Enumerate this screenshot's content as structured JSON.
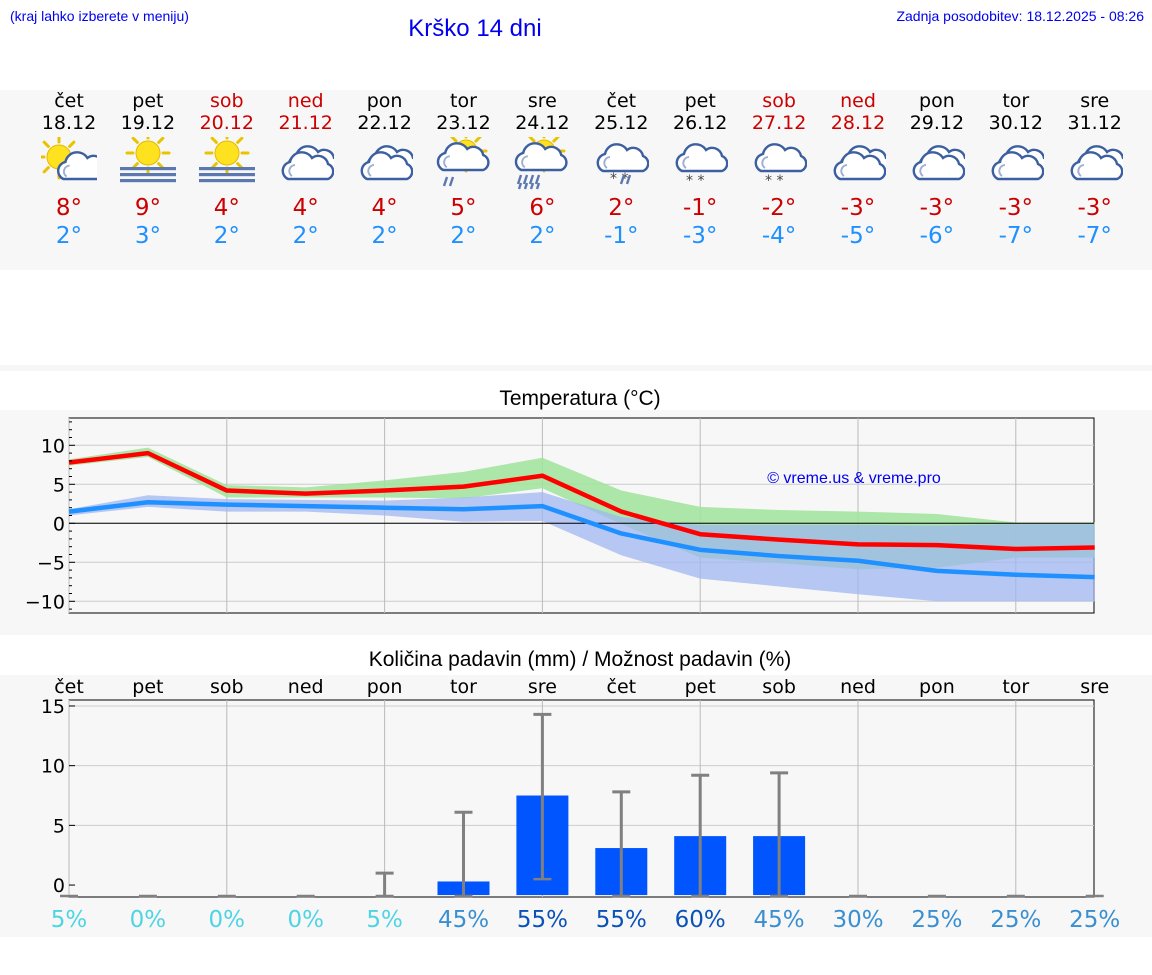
{
  "header": {
    "hint": "(kraj lahko izberete v meniju)",
    "title": "Krško 14 dni",
    "updated": "Zadnja posodobitev: 18.12.2025 - 08:26"
  },
  "days": [
    {
      "name": "čet",
      "date": "18.12",
      "weekend": false,
      "icon": "sun-cloud-icon",
      "tmax": "8°",
      "tmin": "2°"
    },
    {
      "name": "pet",
      "date": "19.12",
      "weekend": false,
      "icon": "sun-fog-icon",
      "tmax": "9°",
      "tmin": "3°"
    },
    {
      "name": "sob",
      "date": "20.12",
      "weekend": true,
      "icon": "sun-fog-icon",
      "tmax": "4°",
      "tmin": "2°"
    },
    {
      "name": "ned",
      "date": "21.12",
      "weekend": true,
      "icon": "cloudy-icon",
      "tmax": "4°",
      "tmin": "2°"
    },
    {
      "name": "pon",
      "date": "22.12",
      "weekend": false,
      "icon": "cloudy-icon",
      "tmax": "4°",
      "tmin": "2°"
    },
    {
      "name": "tor",
      "date": "23.12",
      "weekend": false,
      "icon": "sun-cloud-rain-icon",
      "tmax": "5°",
      "tmin": "2°"
    },
    {
      "name": "sre",
      "date": "24.12",
      "weekend": false,
      "icon": "sun-cloud-heavy-rain-icon",
      "tmax": "6°",
      "tmin": "2°"
    },
    {
      "name": "čet",
      "date": "25.12",
      "weekend": false,
      "icon": "cloud-sleet-icon",
      "tmax": "2°",
      "tmin": "-1°"
    },
    {
      "name": "pet",
      "date": "26.12",
      "weekend": false,
      "icon": "cloud-snow-icon",
      "tmax": "-1°",
      "tmin": "-3°"
    },
    {
      "name": "sob",
      "date": "27.12",
      "weekend": true,
      "icon": "cloud-snow-icon",
      "tmax": "-2°",
      "tmin": "-4°"
    },
    {
      "name": "ned",
      "date": "28.12",
      "weekend": true,
      "icon": "cloudy-icon",
      "tmax": "-3°",
      "tmin": "-5°"
    },
    {
      "name": "pon",
      "date": "29.12",
      "weekend": false,
      "icon": "cloudy-icon",
      "tmax": "-3°",
      "tmin": "-6°"
    },
    {
      "name": "tor",
      "date": "30.12",
      "weekend": false,
      "icon": "cloudy-icon",
      "tmax": "-3°",
      "tmin": "-7°"
    },
    {
      "name": "sre",
      "date": "31.12",
      "weekend": false,
      "icon": "cloudy-icon",
      "tmax": "-3°",
      "tmin": "-7°"
    }
  ],
  "colors": {
    "max_line": "#ff0000",
    "min_line": "#1e90ff",
    "max_band": "#9fe39a",
    "min_band": "#9fb7f0",
    "overlap_band": "#79c99a",
    "bar": "#0055ff",
    "whisker": "#808080",
    "link": "#0000ee"
  },
  "chart_data": [
    {
      "type": "line",
      "title": "Temperatura (°C)",
      "xlabel": "",
      "ylabel": "",
      "ylim": [
        -11.5,
        13.5
      ],
      "yticks": [
        10,
        5,
        0,
        -5,
        -10
      ],
      "ytick_labels": [
        "10",
        "5",
        "0",
        "−5",
        "−10"
      ],
      "watermark": "© vreme.us & vreme.pro",
      "x": [
        0,
        1,
        2,
        3,
        4,
        5,
        6,
        7,
        8,
        9,
        10,
        11,
        12,
        13
      ],
      "series": [
        {
          "name": "max",
          "values": [
            7.8,
            9.0,
            4.2,
            3.8,
            4.2,
            4.7,
            6.1,
            1.5,
            -1.4,
            -2.1,
            -2.7,
            -2.8,
            -3.3,
            -3.1
          ]
        },
        {
          "name": "min",
          "values": [
            1.5,
            2.7,
            2.4,
            2.2,
            2.0,
            1.8,
            2.2,
            -1.3,
            -3.4,
            -4.2,
            -4.8,
            -6.1,
            -6.6,
            -6.9
          ]
        },
        {
          "name": "max_band_upper",
          "values": [
            8.2,
            9.7,
            4.9,
            4.6,
            5.5,
            6.6,
            8.4,
            4.2,
            2.1,
            1.7,
            1.5,
            1.2,
            0.1,
            0.1
          ]
        },
        {
          "name": "max_band_lower",
          "values": [
            7.4,
            8.5,
            3.3,
            3.3,
            3.3,
            3.2,
            4.5,
            -0.1,
            -4.4,
            -5.1,
            -5.9,
            -5.7,
            -4.4,
            -4.4
          ]
        },
        {
          "name": "min_band_upper",
          "values": [
            1.8,
            3.6,
            3.1,
            3.0,
            2.9,
            3.3,
            4.0,
            0.8,
            -0.2,
            -0.2,
            -0.2,
            -0.3,
            -0.1,
            -0.1
          ]
        },
        {
          "name": "min_band_lower",
          "values": [
            1.0,
            2.1,
            1.5,
            1.5,
            1.0,
            0.2,
            0.3,
            -4.1,
            -7.1,
            -8.1,
            -9.1,
            -10.0,
            -10.0,
            -10.0
          ]
        }
      ]
    },
    {
      "type": "bar",
      "title": "Količina padavin (mm) / Možnost padavin (%)",
      "ylim": [
        -1,
        15.5
      ],
      "yticks": [
        15,
        10,
        5,
        0
      ],
      "ytick_labels": [
        "15",
        "10",
        "5",
        "0"
      ],
      "categories": [
        "čet",
        "pet",
        "sob",
        "ned",
        "pon",
        "tor",
        "sre",
        "čet",
        "pet",
        "sob",
        "ned",
        "pon",
        "tor",
        "sre"
      ],
      "values": [
        0,
        0,
        0,
        0,
        0,
        0.3,
        7.5,
        3.1,
        4.1,
        4.1,
        0,
        0,
        0,
        0
      ],
      "whisker_low": [
        0,
        0,
        0,
        0,
        0,
        0,
        0.5,
        0,
        0,
        0,
        0,
        0,
        0,
        0
      ],
      "whisker_high": [
        0,
        0,
        0,
        0,
        1.0,
        6.1,
        14.3,
        7.8,
        9.2,
        9.4,
        0,
        0,
        0,
        0
      ],
      "chance": [
        "5%",
        "0%",
        "0%",
        "0%",
        "5%",
        "45%",
        "55%",
        "55%",
        "60%",
        "45%",
        "30%",
        "25%",
        "25%",
        "25%"
      ],
      "chance_values": [
        5,
        0,
        0,
        0,
        5,
        45,
        55,
        55,
        60,
        45,
        30,
        25,
        25,
        25
      ]
    }
  ]
}
